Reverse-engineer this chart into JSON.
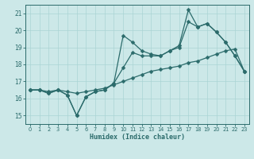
{
  "xlabel": "Humidex (Indice chaleur)",
  "xlim": [
    -0.5,
    23.5
  ],
  "ylim": [
    14.5,
    21.5
  ],
  "xticks": [
    0,
    1,
    2,
    3,
    4,
    5,
    6,
    7,
    8,
    9,
    10,
    11,
    12,
    13,
    14,
    15,
    16,
    17,
    18,
    19,
    20,
    21,
    22,
    23
  ],
  "yticks": [
    15,
    16,
    17,
    18,
    19,
    20,
    21
  ],
  "bg_color": "#cce8e8",
  "line_color": "#2b6b6b",
  "grid_color": "#aad4d4",
  "line1_x": [
    0,
    1,
    2,
    3,
    4,
    5,
    6,
    7,
    8,
    9,
    10,
    11,
    12,
    13,
    14,
    15,
    16,
    17,
    18,
    19,
    20,
    21,
    22,
    23
  ],
  "line1_y": [
    16.5,
    16.5,
    16.3,
    16.5,
    16.2,
    15.0,
    16.1,
    16.4,
    16.5,
    16.9,
    19.7,
    19.3,
    18.8,
    18.6,
    18.5,
    18.8,
    19.1,
    21.2,
    20.2,
    20.4,
    19.9,
    19.3,
    18.5,
    17.6
  ],
  "line2_x": [
    0,
    1,
    2,
    3,
    4,
    5,
    6,
    7,
    8,
    9,
    10,
    11,
    12,
    13,
    14,
    15,
    16,
    17,
    18,
    19,
    20,
    21,
    22,
    23
  ],
  "line2_y": [
    16.5,
    16.5,
    16.3,
    16.5,
    16.2,
    15.0,
    16.1,
    16.4,
    16.5,
    16.9,
    17.8,
    18.7,
    18.5,
    18.5,
    18.5,
    18.8,
    19.0,
    20.5,
    20.2,
    20.4,
    19.9,
    19.3,
    18.5,
    17.6
  ],
  "line3_x": [
    0,
    1,
    2,
    3,
    4,
    5,
    6,
    7,
    8,
    9,
    10,
    11,
    12,
    13,
    14,
    15,
    16,
    17,
    18,
    19,
    20,
    21,
    22,
    23
  ],
  "line3_y": [
    16.5,
    16.5,
    16.4,
    16.5,
    16.4,
    16.3,
    16.4,
    16.5,
    16.6,
    16.8,
    17.0,
    17.2,
    17.4,
    17.6,
    17.7,
    17.8,
    17.9,
    18.1,
    18.2,
    18.4,
    18.6,
    18.8,
    18.9,
    17.6
  ]
}
